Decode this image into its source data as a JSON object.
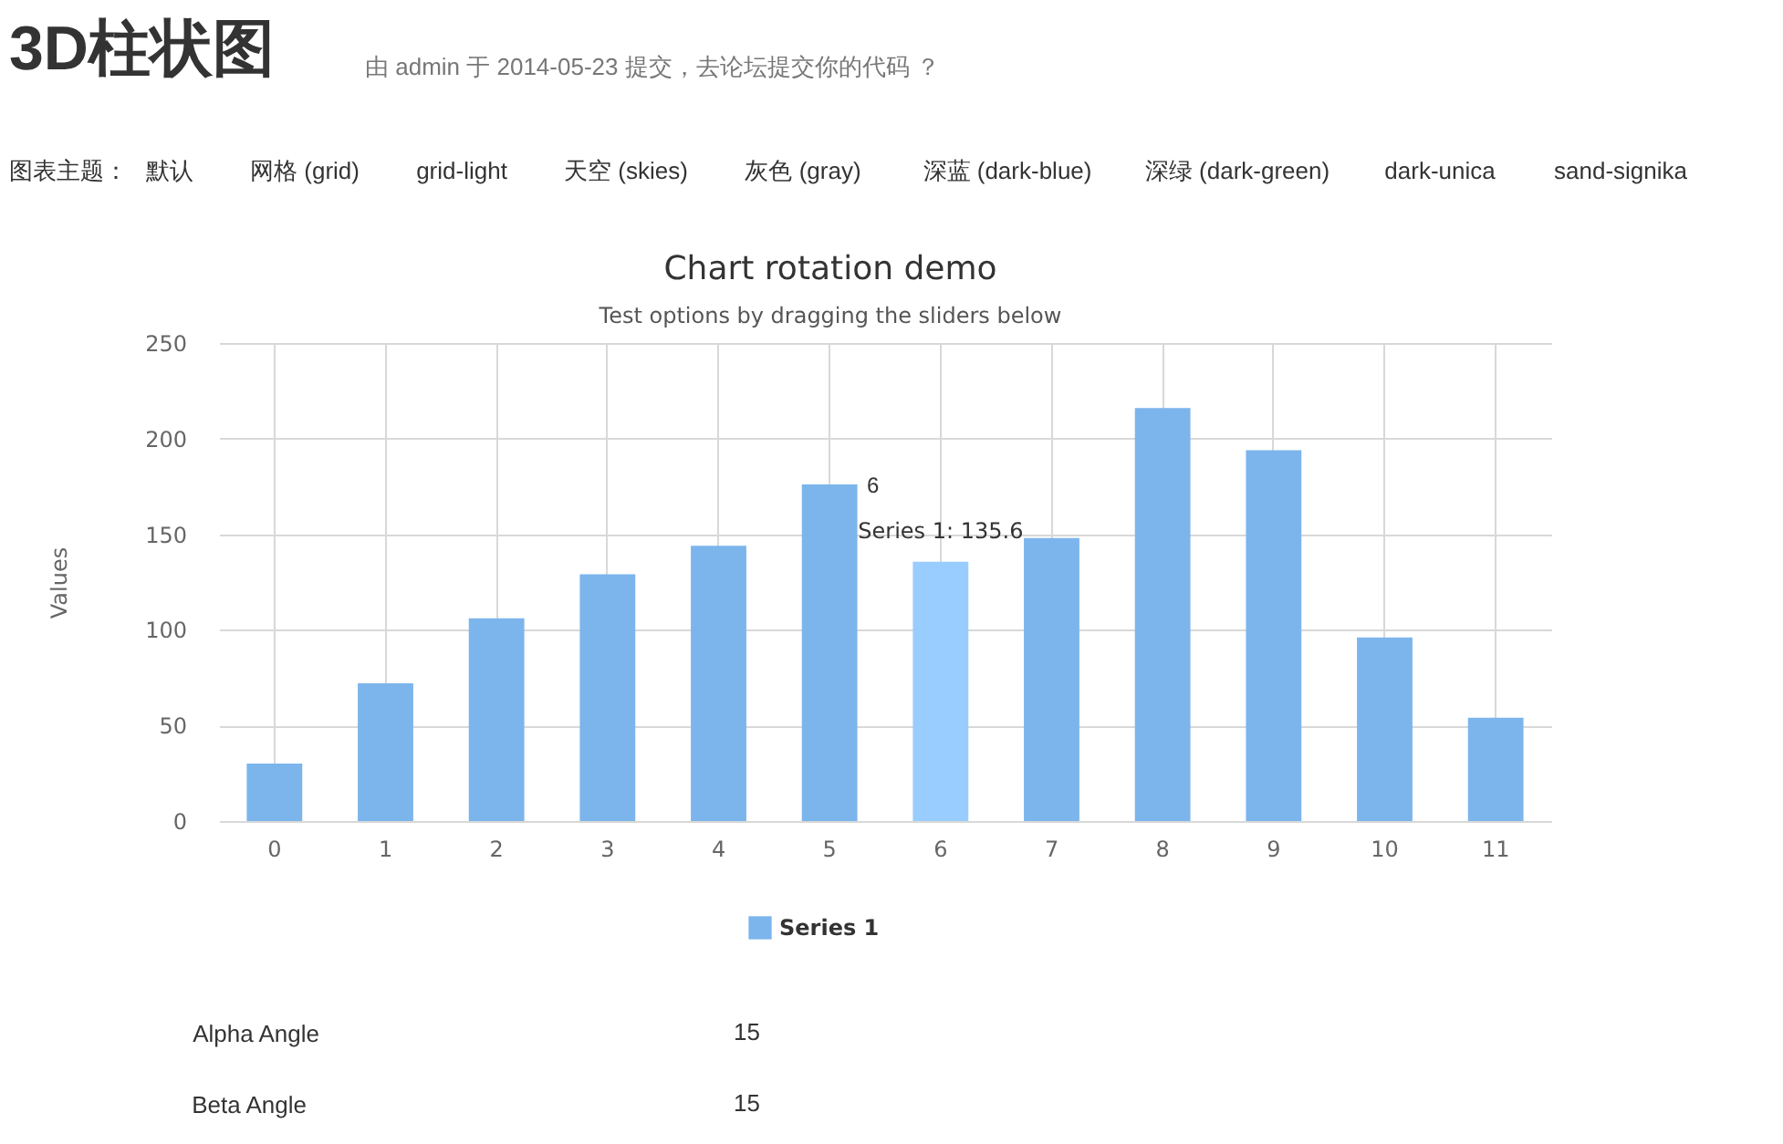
{
  "chart_data": {
    "type": "bar",
    "title": "Chart rotation demo",
    "subtitle": "Test options by dragging the sliders below",
    "ylabel": "Values",
    "categories": [
      "0",
      "1",
      "2",
      "3",
      "4",
      "5",
      "6",
      "7",
      "8",
      "9",
      "10",
      "11"
    ],
    "series": [
      {
        "name": "Series 1",
        "color": "#7cb5ec",
        "colors": [
          "#7cb5ec",
          "#7cb5ec",
          "#7cb5ec",
          "#7cb5ec",
          "#7cb5ec",
          "#7cb5ec",
          "#99ccff",
          "#7cb5ec",
          "#7cb5ec",
          "#7cb5ec",
          "#7cb5ec",
          "#7cb5ec"
        ],
        "values": [
          30,
          72,
          106,
          129,
          144,
          176,
          135.6,
          148,
          216,
          194,
          96,
          54
        ]
      }
    ],
    "ylim": [
      0,
      250
    ],
    "yticks": [
      0,
      50,
      100,
      150,
      200,
      250
    ],
    "grid": true,
    "legend": "bottom",
    "annotations": [
      "3D柱状图",
      "由 admin 于 2014-05-23 提交，去论坛提交你的代码 ？",
      "图表主题：",
      "默认",
      "网格 (grid)",
      "grid-light",
      "天空 (skies)",
      "灰色 (gray)",
      "深蓝 (dark-blue)",
      "深绿 (dark-green)",
      "dark-unica",
      "sand-signika",
      "Alpha Angle",
      "15",
      "Beta Angle",
      "15",
      "6",
      {
        "text": "Series 1: 135.6",
        "x": "6",
        "y": 135.6
      }
    ]
  }
}
